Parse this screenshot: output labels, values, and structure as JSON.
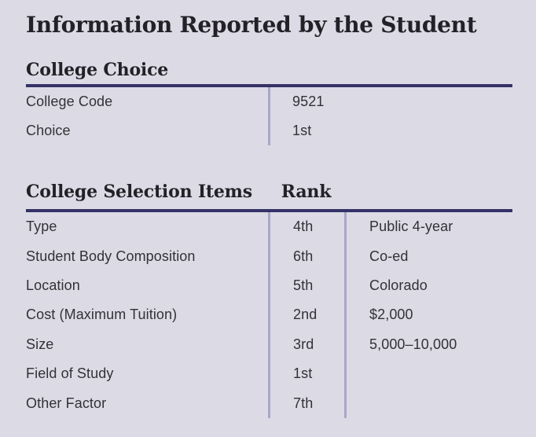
{
  "title": "Information Reported by the Student",
  "colors": {
    "background": "#dcdbe5",
    "rule": "#353268",
    "divider": "#a9a7c7",
    "text": "#232127"
  },
  "college_choice": {
    "heading": "College Choice",
    "rows": [
      {
        "label": "College Code",
        "value": "9521"
      },
      {
        "label": "Choice",
        "value": "1st"
      }
    ]
  },
  "college_selection": {
    "heading": "College Selection Items",
    "rank_header": "Rank",
    "rows": [
      {
        "label": "Type",
        "rank": "4th",
        "value": "Public 4-year"
      },
      {
        "label": "Student Body Composition",
        "rank": "6th",
        "value": "Co-ed"
      },
      {
        "label": "Location",
        "rank": "5th",
        "value": "Colorado"
      },
      {
        "label": "Cost (Maximum Tuition)",
        "rank": "2nd",
        "value": "$2,000"
      },
      {
        "label": "Size",
        "rank": "3rd",
        "value": "5,000–10,000"
      },
      {
        "label": "Field of Study",
        "rank": "1st",
        "value": ""
      },
      {
        "label": "Other Factor",
        "rank": "7th",
        "value": ""
      }
    ]
  }
}
